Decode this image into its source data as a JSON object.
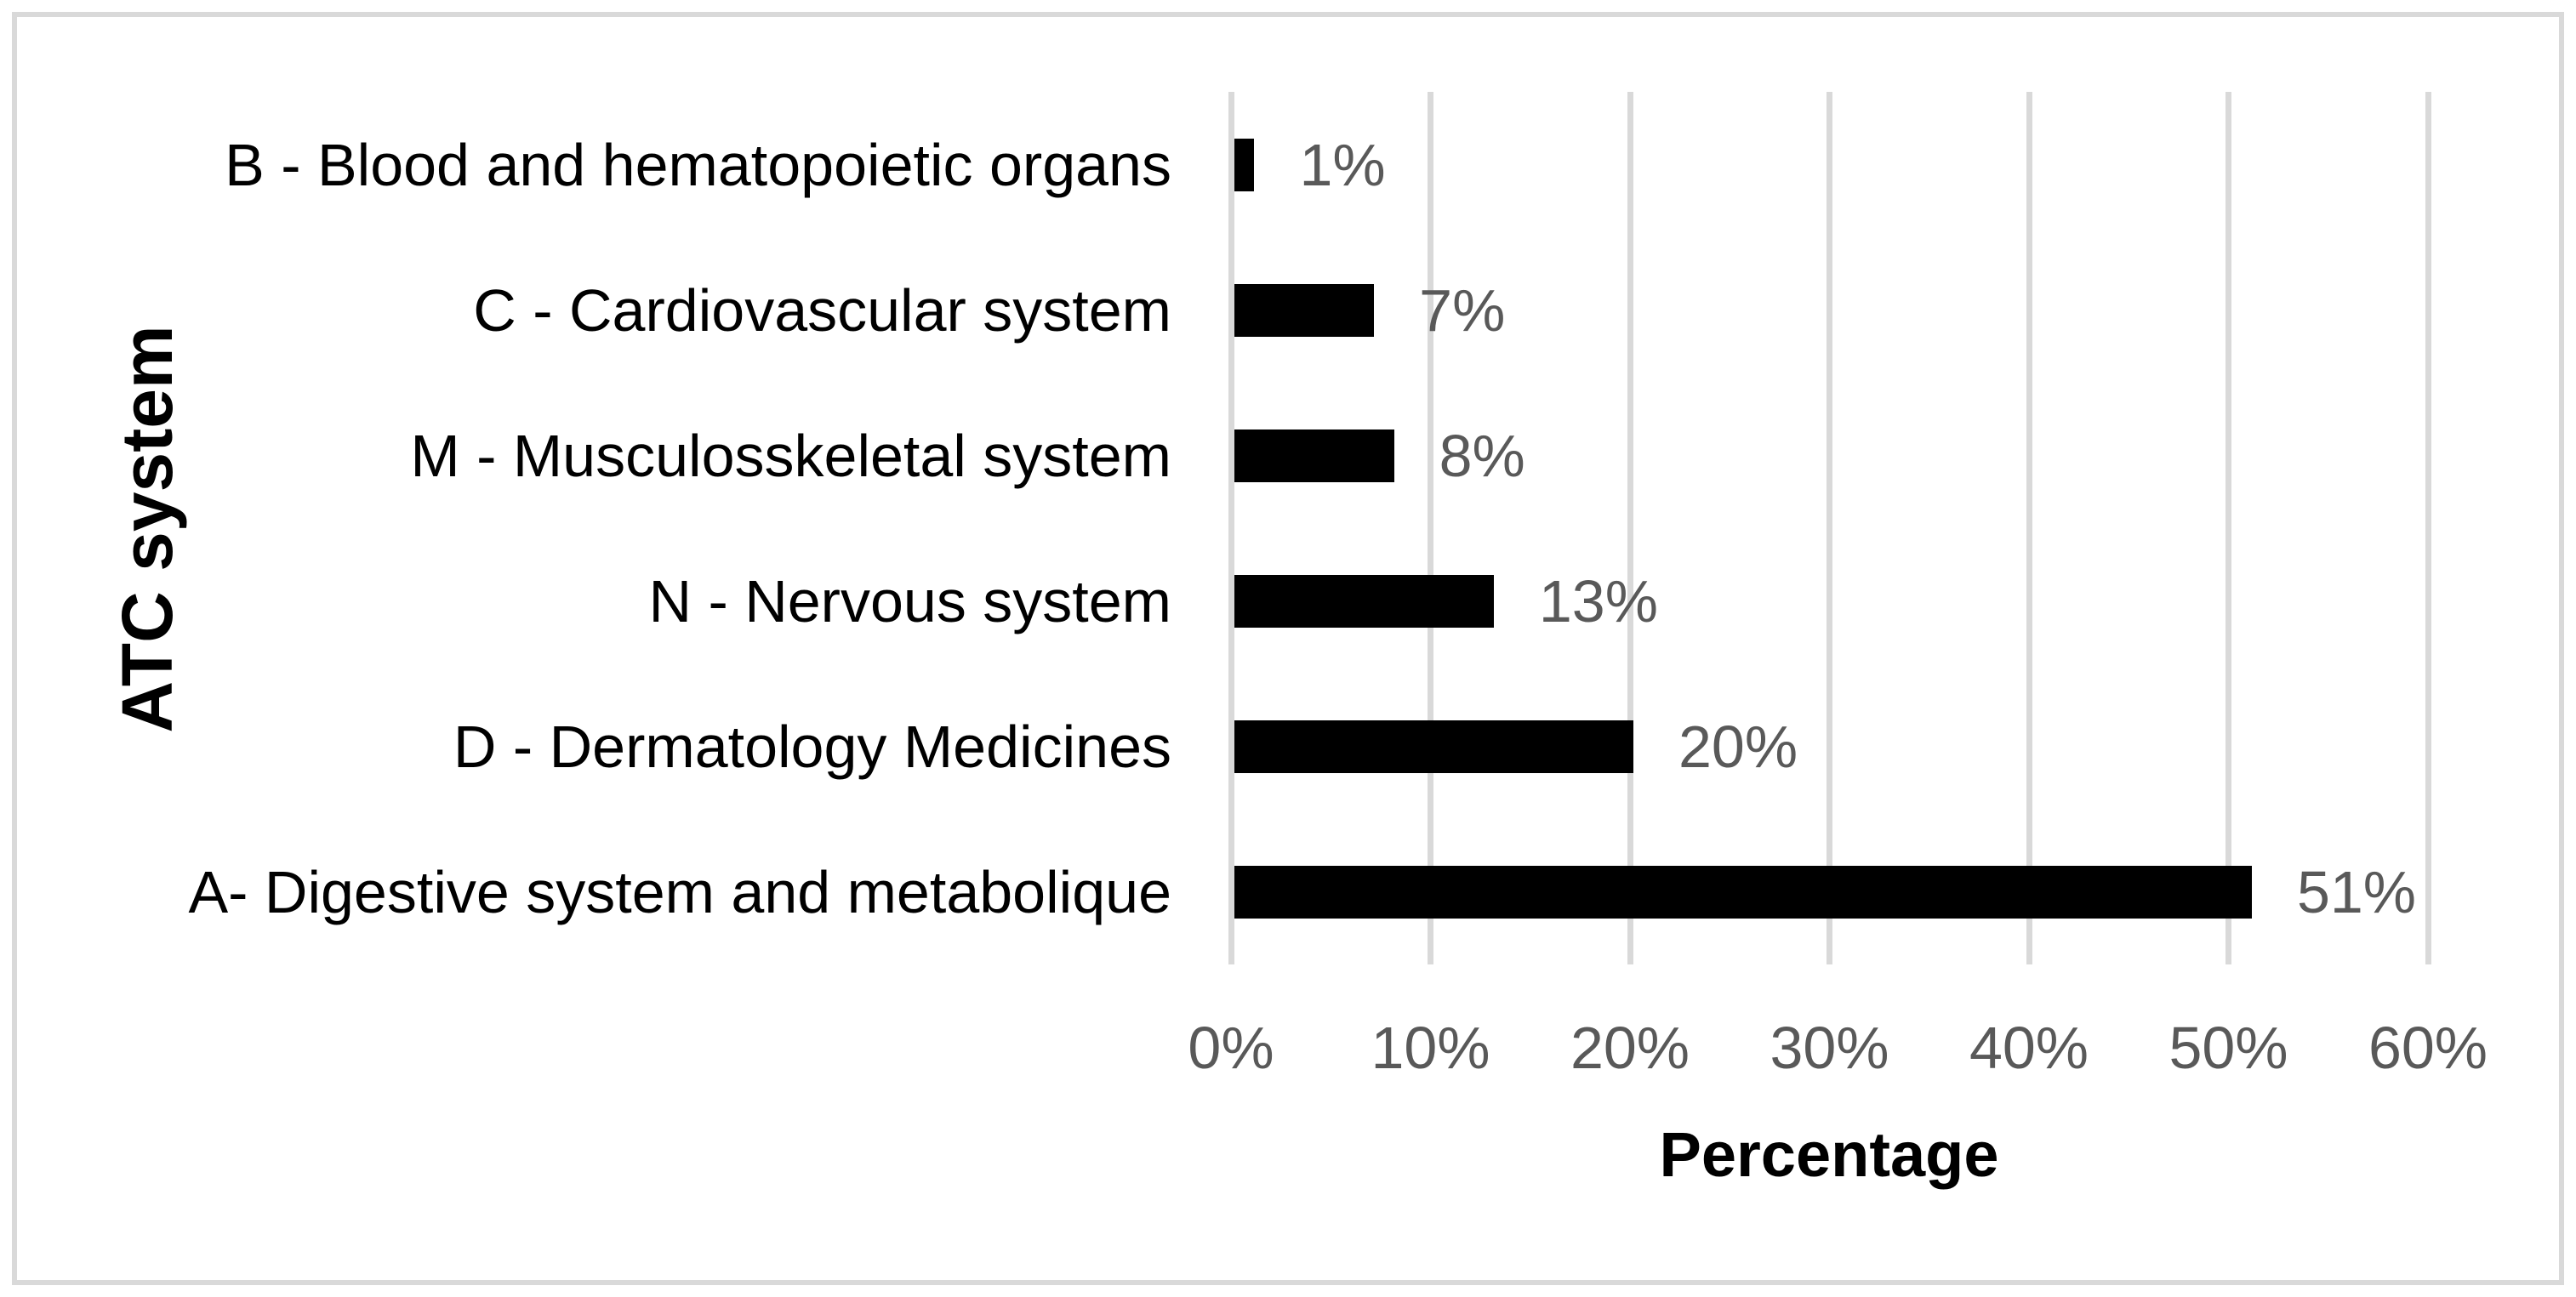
{
  "figure": {
    "background_color": "#ffffff",
    "border_color": "#d9d9d9"
  },
  "chart_data": {
    "type": "bar",
    "orientation": "horizontal",
    "title": "",
    "xlabel": "Percentage",
    "ylabel": "ATC system",
    "categories": [
      "B - Blood and hematopoietic organs",
      "C - Cardiovascular system",
      "M - Musculosskeletal system",
      "N - Nervous system",
      "D - Dermatology Medicines",
      "A- Digestive system and metabolique"
    ],
    "values": [
      1,
      7,
      8,
      13,
      20,
      51
    ],
    "data_labels": [
      "1%",
      "7%",
      "8%",
      "13%",
      "20%",
      "51%"
    ],
    "x_ticks": [
      "0%",
      "10%",
      "20%",
      "30%",
      "40%",
      "50%",
      "60%"
    ],
    "x_tick_values": [
      0,
      10,
      20,
      30,
      40,
      50,
      60
    ],
    "xlim": [
      0,
      60
    ],
    "grid": "vertical",
    "legend": "none",
    "bar_color": "#000000",
    "gridline_color": "#d9d9d9",
    "tick_label_color": "#595959",
    "data_label_color": "#595959"
  }
}
